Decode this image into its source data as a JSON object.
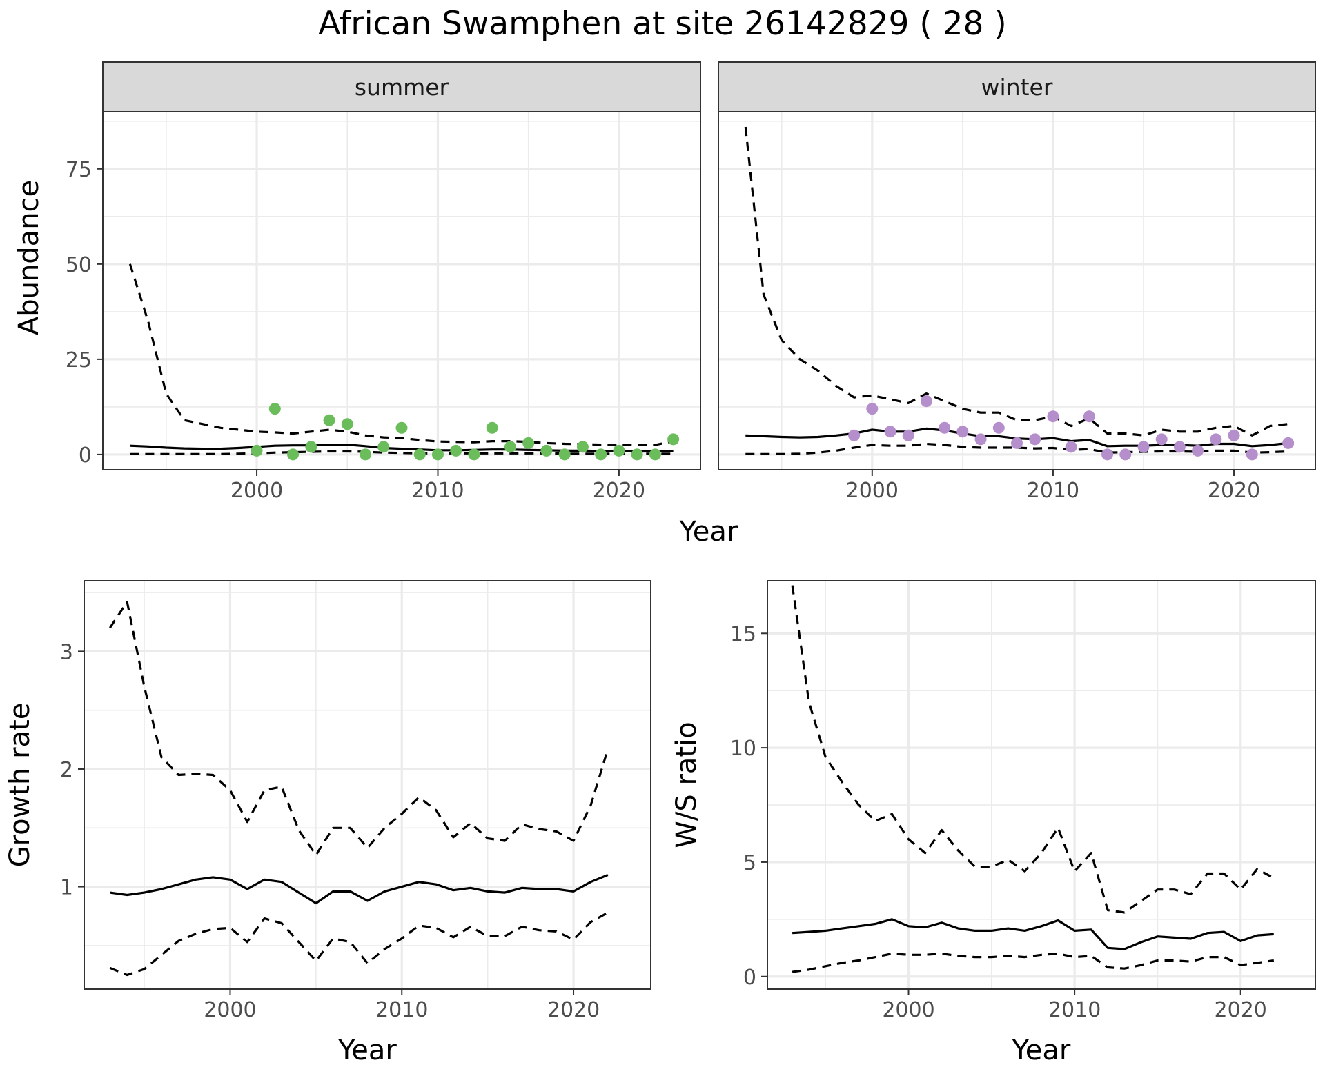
{
  "title": "African Swamphen at site 26142829 ( 28 )",
  "colors": {
    "summer_points": "#6ABD5A",
    "winter_points": "#B58FCB",
    "line": "#000000",
    "strip_bg": "#D9D9D9",
    "grid": "#EBEBEB",
    "axis_text": "#4D4D4D"
  },
  "chart_data": [
    {
      "type": "line",
      "panel": "summer",
      "strip_label": "summer",
      "xlabel": "Year",
      "ylabel": "Abundance",
      "xlim": [
        1991.5,
        2024.5
      ],
      "ylim": [
        -4,
        90
      ],
      "xticks": [
        2000,
        2010,
        2020
      ],
      "yticks": [
        0,
        25,
        50,
        75
      ],
      "grid": true,
      "point_color": "#6ABD5A",
      "points": {
        "x": [
          2000,
          2001,
          2002,
          2003,
          2004,
          2005,
          2006,
          2007,
          2008,
          2009,
          2010,
          2011,
          2012,
          2013,
          2014,
          2015,
          2016,
          2017,
          2018,
          2019,
          2020,
          2021,
          2022,
          2023
        ],
        "y": [
          1,
          12,
          0,
          2,
          9,
          8,
          0,
          2,
          7,
          0,
          0,
          1,
          0,
          7,
          2,
          3,
          1,
          0,
          2,
          0,
          1,
          0,
          0,
          4
        ]
      },
      "series": [
        {
          "style": "solid",
          "x": [
            1993,
            1994,
            1995,
            1996,
            1997,
            1998,
            1999,
            2000,
            2001,
            2002,
            2003,
            2004,
            2005,
            2006,
            2007,
            2008,
            2009,
            2010,
            2011,
            2012,
            2013,
            2014,
            2015,
            2016,
            2017,
            2018,
            2019,
            2020,
            2021,
            2022,
            2023
          ],
          "y": [
            2.3,
            2.1,
            1.8,
            1.6,
            1.5,
            1.5,
            1.7,
            2.0,
            2.3,
            2.4,
            2.4,
            2.6,
            2.6,
            2.2,
            1.7,
            1.5,
            1.3,
            1.1,
            1.1,
            1.2,
            1.3,
            1.3,
            1.2,
            1.1,
            1.0,
            1.0,
            0.9,
            0.9,
            0.8,
            0.8,
            0.9
          ]
        },
        {
          "style": "dashed",
          "x": [
            1993,
            1994,
            1995,
            1996,
            1997,
            1998,
            1999,
            2000,
            2001,
            2002,
            2003,
            2004,
            2005,
            2006,
            2007,
            2008,
            2009,
            2010,
            2011,
            2012,
            2013,
            2014,
            2015,
            2016,
            2017,
            2018,
            2019,
            2020,
            2021,
            2022,
            2023
          ],
          "y": [
            50,
            35,
            16,
            9,
            8,
            7,
            6.5,
            6,
            5.8,
            5.5,
            6,
            6.5,
            6,
            5,
            4.5,
            4.3,
            3.8,
            3.4,
            3.3,
            3.2,
            3.5,
            3.5,
            3.3,
            3,
            2.8,
            2.7,
            2.6,
            2.6,
            2.5,
            2.5,
            3.5
          ]
        },
        {
          "style": "dashed",
          "x": [
            1993,
            1994,
            1995,
            1996,
            1997,
            1998,
            1999,
            2000,
            2001,
            2002,
            2003,
            2004,
            2005,
            2006,
            2007,
            2008,
            2009,
            2010,
            2011,
            2012,
            2013,
            2014,
            2015,
            2016,
            2017,
            2018,
            2019,
            2020,
            2021,
            2022,
            2023
          ],
          "y": [
            0.1,
            0.1,
            0.1,
            0.1,
            0.1,
            0.1,
            0.2,
            0.3,
            0.5,
            0.6,
            0.7,
            0.8,
            0.8,
            0.7,
            0.5,
            0.4,
            0.3,
            0.3,
            0.3,
            0.3,
            0.3,
            0.3,
            0.3,
            0.3,
            0.2,
            0.2,
            0.2,
            0.2,
            0.2,
            0.2,
            0.2
          ]
        }
      ]
    },
    {
      "type": "line",
      "panel": "winter",
      "strip_label": "winter",
      "xlabel": "Year",
      "ylabel": "Abundance",
      "xlim": [
        1991.5,
        2024.5
      ],
      "ylim": [
        -4,
        90
      ],
      "xticks": [
        2000,
        2010,
        2020
      ],
      "yticks": [
        0,
        25,
        50,
        75
      ],
      "grid": true,
      "point_color": "#B58FCB",
      "points": {
        "x": [
          1999,
          2000,
          2001,
          2002,
          2003,
          2004,
          2005,
          2006,
          2007,
          2008,
          2009,
          2010,
          2011,
          2012,
          2013,
          2014,
          2015,
          2016,
          2017,
          2018,
          2019,
          2020,
          2021,
          2023
        ],
        "y": [
          5,
          12,
          6,
          5,
          14,
          7,
          6,
          4,
          7,
          3,
          4,
          10,
          2,
          10,
          0,
          0,
          2,
          4,
          2,
          1,
          4,
          5,
          0,
          3
        ]
      },
      "series": [
        {
          "style": "solid",
          "x": [
            1993,
            1994,
            1995,
            1996,
            1997,
            1998,
            1999,
            2000,
            2001,
            2002,
            2003,
            2004,
            2005,
            2006,
            2007,
            2008,
            2009,
            2010,
            2011,
            2012,
            2013,
            2014,
            2015,
            2016,
            2017,
            2018,
            2019,
            2020,
            2021,
            2022,
            2023
          ],
          "y": [
            5,
            4.8,
            4.6,
            4.5,
            4.6,
            5,
            5.5,
            6.5,
            6,
            6,
            6.8,
            6.3,
            5.5,
            4.8,
            4.8,
            4.2,
            4,
            4.3,
            3.5,
            3.8,
            2.2,
            2.3,
            2.3,
            2.5,
            2.5,
            2.3,
            2.8,
            2.8,
            2.2,
            2.5,
            3
          ]
        },
        {
          "style": "dashed",
          "x": [
            1993,
            1994,
            1995,
            1996,
            1997,
            1998,
            1999,
            2000,
            2001,
            2002,
            2003,
            2004,
            2005,
            2006,
            2007,
            2008,
            2009,
            2010,
            2011,
            2012,
            2013,
            2014,
            2015,
            2016,
            2017,
            2018,
            2019,
            2020,
            2021,
            2022,
            2023
          ],
          "y": [
            86,
            42,
            30,
            25,
            22,
            18,
            15,
            15.5,
            14.5,
            13.5,
            16,
            14,
            12,
            11,
            11,
            9,
            9,
            10,
            7.5,
            9.5,
            5.5,
            5.5,
            5,
            6.5,
            6,
            6,
            7,
            7.5,
            5,
            7.5,
            8
          ]
        },
        {
          "style": "dashed",
          "x": [
            1993,
            1994,
            1995,
            1996,
            1997,
            1998,
            1999,
            2000,
            2001,
            2002,
            2003,
            2004,
            2005,
            2006,
            2007,
            2008,
            2009,
            2010,
            2011,
            2012,
            2013,
            2014,
            2015,
            2016,
            2017,
            2018,
            2019,
            2020,
            2021,
            2022,
            2023
          ],
          "y": [
            0.1,
            0.1,
            0.1,
            0.2,
            0.5,
            1.0,
            1.8,
            2.5,
            2.3,
            2.3,
            2.8,
            2.5,
            2,
            1.8,
            1.8,
            1.8,
            1.6,
            1.7,
            1.2,
            1.4,
            0.5,
            0.6,
            0.7,
            0.8,
            0.8,
            0.7,
            1,
            1,
            0.5,
            0.6,
            0.8
          ]
        }
      ]
    },
    {
      "type": "line",
      "panel": "growth",
      "xlabel": "Year",
      "ylabel": "Growth rate",
      "xlim": [
        1991.5,
        2024.5
      ],
      "ylim": [
        0.13,
        3.6
      ],
      "xticks": [
        2000,
        2010,
        2020
      ],
      "yticks": [
        1,
        2,
        3
      ],
      "grid": true,
      "series": [
        {
          "style": "solid",
          "x": [
            1993,
            1994,
            1995,
            1996,
            1997,
            1998,
            1999,
            2000,
            2001,
            2002,
            2003,
            2004,
            2005,
            2006,
            2007,
            2008,
            2009,
            2010,
            2011,
            2012,
            2013,
            2014,
            2015,
            2016,
            2017,
            2018,
            2019,
            2020,
            2021,
            2022
          ],
          "y": [
            0.95,
            0.93,
            0.95,
            0.98,
            1.02,
            1.06,
            1.08,
            1.06,
            0.98,
            1.06,
            1.04,
            0.95,
            0.86,
            0.96,
            0.96,
            0.88,
            0.96,
            1.0,
            1.04,
            1.02,
            0.97,
            0.99,
            0.96,
            0.95,
            0.99,
            0.98,
            0.98,
            0.96,
            1.04,
            1.1
          ]
        },
        {
          "style": "dashed",
          "x": [
            1993,
            1994,
            1995,
            1996,
            1997,
            1998,
            1999,
            2000,
            2001,
            2002,
            2003,
            2004,
            2005,
            2006,
            2007,
            2008,
            2009,
            2010,
            2011,
            2012,
            2013,
            2014,
            2015,
            2016,
            2017,
            2018,
            2019,
            2020,
            2021,
            2022
          ],
          "y": [
            3.2,
            3.42,
            2.7,
            2.1,
            1.95,
            1.96,
            1.95,
            1.82,
            1.55,
            1.82,
            1.85,
            1.48,
            1.27,
            1.5,
            1.5,
            1.33,
            1.5,
            1.62,
            1.76,
            1.65,
            1.42,
            1.54,
            1.41,
            1.39,
            1.53,
            1.49,
            1.47,
            1.39,
            1.69,
            2.17
          ]
        },
        {
          "style": "dashed",
          "x": [
            1993,
            1994,
            1995,
            1996,
            1997,
            1998,
            1999,
            2000,
            2001,
            2002,
            2003,
            2004,
            2005,
            2006,
            2007,
            2008,
            2009,
            2010,
            2011,
            2012,
            2013,
            2014,
            2015,
            2016,
            2017,
            2018,
            2019,
            2020,
            2021,
            2022
          ],
          "y": [
            0.31,
            0.25,
            0.3,
            0.42,
            0.54,
            0.6,
            0.64,
            0.65,
            0.53,
            0.73,
            0.69,
            0.53,
            0.37,
            0.56,
            0.53,
            0.35,
            0.47,
            0.56,
            0.67,
            0.65,
            0.57,
            0.66,
            0.58,
            0.58,
            0.66,
            0.63,
            0.62,
            0.55,
            0.7,
            0.78
          ]
        }
      ]
    },
    {
      "type": "line",
      "panel": "ratio",
      "xlabel": "Year",
      "ylabel": "W/S ratio",
      "xlim": [
        1991.5,
        2024.5
      ],
      "ylim": [
        -0.55,
        17.3
      ],
      "xticks": [
        2000,
        2010,
        2020
      ],
      "yticks": [
        0,
        5,
        10,
        15
      ],
      "grid": true,
      "series": [
        {
          "style": "solid",
          "x": [
            1993,
            1994,
            1995,
            1996,
            1997,
            1998,
            1999,
            2000,
            2001,
            2002,
            2003,
            2004,
            2005,
            2006,
            2007,
            2008,
            2009,
            2010,
            2011,
            2012,
            2013,
            2014,
            2015,
            2016,
            2017,
            2018,
            2019,
            2020,
            2021,
            2022
          ],
          "y": [
            1.9,
            1.95,
            2.0,
            2.1,
            2.2,
            2.3,
            2.5,
            2.2,
            2.15,
            2.35,
            2.1,
            2.0,
            2.0,
            2.1,
            2.0,
            2.2,
            2.45,
            2.0,
            2.05,
            1.25,
            1.2,
            1.5,
            1.75,
            1.7,
            1.65,
            1.9,
            1.95,
            1.55,
            1.8,
            1.85
          ]
        },
        {
          "style": "dashed",
          "x": [
            1993,
            1994,
            1995,
            1996,
            1997,
            1998,
            1999,
            2000,
            2001,
            2002,
            2003,
            2004,
            2005,
            2006,
            2007,
            2008,
            2009,
            2010,
            2011,
            2012,
            2013,
            2014,
            2015,
            2016,
            2017,
            2018,
            2019,
            2020,
            2021,
            2022
          ],
          "y": [
            17.1,
            12,
            9.6,
            8.5,
            7.5,
            6.8,
            7.1,
            6,
            5.4,
            6.4,
            5.5,
            4.8,
            4.8,
            5.1,
            4.6,
            5.4,
            6.5,
            4.6,
            5.4,
            2.9,
            2.8,
            3.3,
            3.8,
            3.8,
            3.6,
            4.5,
            4.5,
            3.8,
            4.7,
            4.3
          ]
        },
        {
          "style": "dashed",
          "x": [
            1993,
            1994,
            1995,
            1996,
            1997,
            1998,
            1999,
            2000,
            2001,
            2002,
            2003,
            2004,
            2005,
            2006,
            2007,
            2008,
            2009,
            2010,
            2011,
            2012,
            2013,
            2014,
            2015,
            2016,
            2017,
            2018,
            2019,
            2020,
            2021,
            2022
          ],
          "y": [
            0.2,
            0.3,
            0.45,
            0.6,
            0.7,
            0.85,
            1.0,
            0.95,
            0.95,
            1.0,
            0.9,
            0.85,
            0.85,
            0.9,
            0.85,
            0.95,
            1.0,
            0.85,
            0.9,
            0.4,
            0.35,
            0.5,
            0.7,
            0.7,
            0.65,
            0.85,
            0.85,
            0.5,
            0.6,
            0.7
          ]
        }
      ]
    }
  ]
}
